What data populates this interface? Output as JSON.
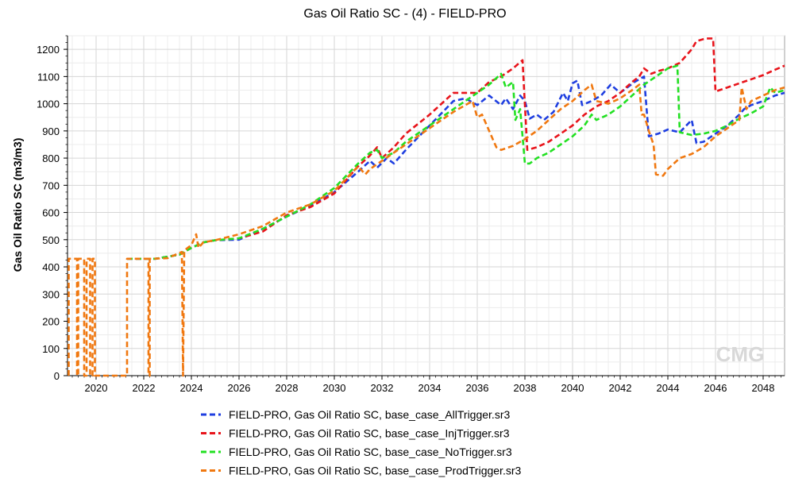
{
  "chart_data": {
    "type": "line",
    "title": "Gas Oil Ratio SC - (4) - FIELD-PRO",
    "ylabel": "Gas Oil Ratio SC (m3/m3)",
    "xlabel": "",
    "xlim": [
      2018.8,
      2048.9
    ],
    "ylim": [
      0,
      1250
    ],
    "x_ticks": [
      2020,
      2022,
      2024,
      2026,
      2028,
      2030,
      2032,
      2034,
      2036,
      2038,
      2040,
      2042,
      2044,
      2046,
      2048
    ],
    "y_ticks": [
      0,
      100,
      200,
      300,
      400,
      500,
      600,
      700,
      800,
      900,
      1000,
      1100,
      1200
    ],
    "grid": true,
    "legend_position": "bottom",
    "watermark": "CMG",
    "series": [
      {
        "name": "FIELD-PRO, Gas Oil Ratio SC, base_case_AllTrigger.sr3",
        "color": "#1f3fe0",
        "dash": "dashed",
        "points": [
          [
            2021.3,
            430
          ],
          [
            2022.5,
            430
          ],
          [
            2023.5,
            445
          ],
          [
            2024.0,
            470
          ],
          [
            2024.5,
            490
          ],
          [
            2025.0,
            498
          ],
          [
            2026.0,
            500
          ],
          [
            2027.0,
            540
          ],
          [
            2028.0,
            585
          ],
          [
            2029.0,
            625
          ],
          [
            2030.0,
            675
          ],
          [
            2031.0,
            750
          ],
          [
            2031.5,
            790
          ],
          [
            2031.8,
            765
          ],
          [
            2032.2,
            800
          ],
          [
            2032.5,
            780
          ],
          [
            2033.0,
            830
          ],
          [
            2034.0,
            920
          ],
          [
            2035.0,
            1010
          ],
          [
            2035.5,
            1020
          ],
          [
            2036.0,
            995
          ],
          [
            2036.5,
            1030
          ],
          [
            2037.0,
            995
          ],
          [
            2037.2,
            1020
          ],
          [
            2037.5,
            980
          ],
          [
            2037.8,
            1030
          ],
          [
            2038.0,
            1010
          ],
          [
            2038.2,
            945
          ],
          [
            2038.5,
            960
          ],
          [
            2038.8,
            940
          ],
          [
            2039.2,
            970
          ],
          [
            2039.6,
            1040
          ],
          [
            2039.8,
            1010
          ],
          [
            2040.0,
            1075
          ],
          [
            2040.2,
            1085
          ],
          [
            2040.4,
            995
          ],
          [
            2040.8,
            1010
          ],
          [
            2041.2,
            1030
          ],
          [
            2041.6,
            1070
          ],
          [
            2042.0,
            1040
          ],
          [
            2042.3,
            1060
          ],
          [
            2042.6,
            1080
          ],
          [
            2043.0,
            1100
          ],
          [
            2043.2,
            880
          ],
          [
            2043.6,
            890
          ],
          [
            2044.0,
            905
          ],
          [
            2044.5,
            895
          ],
          [
            2045.0,
            940
          ],
          [
            2045.2,
            855
          ],
          [
            2045.5,
            860
          ],
          [
            2046.0,
            890
          ],
          [
            2046.5,
            920
          ],
          [
            2047.0,
            960
          ],
          [
            2047.2,
            980
          ],
          [
            2047.5,
            995
          ],
          [
            2048.0,
            1010
          ],
          [
            2048.5,
            1030
          ],
          [
            2048.9,
            1040
          ]
        ]
      },
      {
        "name": "FIELD-PRO, Gas Oil Ratio SC, base_case_InjTrigger.sr3",
        "color": "#e8141b",
        "dash": "dashed",
        "points": [
          [
            2021.3,
            430
          ],
          [
            2022.5,
            430
          ],
          [
            2023.5,
            445
          ],
          [
            2024.0,
            470
          ],
          [
            2024.5,
            490
          ],
          [
            2025.0,
            498
          ],
          [
            2026.0,
            505
          ],
          [
            2027.0,
            530
          ],
          [
            2028.0,
            590
          ],
          [
            2029.0,
            620
          ],
          [
            2030.0,
            670
          ],
          [
            2031.0,
            770
          ],
          [
            2031.5,
            810
          ],
          [
            2031.8,
            840
          ],
          [
            2032.0,
            800
          ],
          [
            2032.5,
            840
          ],
          [
            2033.0,
            890
          ],
          [
            2034.0,
            960
          ],
          [
            2035.0,
            1040
          ],
          [
            2036.0,
            1040
          ],
          [
            2036.5,
            1080
          ],
          [
            2037.0,
            1100
          ],
          [
            2037.5,
            1130
          ],
          [
            2037.9,
            1160
          ],
          [
            2038.1,
            830
          ],
          [
            2038.5,
            840
          ],
          [
            2039.0,
            860
          ],
          [
            2039.5,
            890
          ],
          [
            2040.0,
            920
          ],
          [
            2040.5,
            960
          ],
          [
            2041.0,
            990
          ],
          [
            2041.5,
            1010
          ],
          [
            2042.0,
            1040
          ],
          [
            2042.5,
            1080
          ],
          [
            2042.8,
            1100
          ],
          [
            2043.0,
            1130
          ],
          [
            2043.3,
            1110
          ],
          [
            2043.6,
            1120
          ],
          [
            2044.0,
            1130
          ],
          [
            2044.5,
            1150
          ],
          [
            2044.8,
            1180
          ],
          [
            2045.0,
            1200
          ],
          [
            2045.2,
            1230
          ],
          [
            2045.6,
            1240
          ],
          [
            2045.9,
            1240
          ],
          [
            2046.0,
            1045
          ],
          [
            2046.5,
            1060
          ],
          [
            2047.0,
            1075
          ],
          [
            2047.5,
            1090
          ],
          [
            2048.0,
            1105
          ],
          [
            2048.5,
            1125
          ],
          [
            2048.9,
            1140
          ]
        ]
      },
      {
        "name": "FIELD-PRO, Gas Oil Ratio SC, base_case_NoTrigger.sr3",
        "color": "#22e022",
        "dash": "dashed",
        "points": [
          [
            2021.3,
            430
          ],
          [
            2022.5,
            430
          ],
          [
            2023.5,
            445
          ],
          [
            2024.0,
            470
          ],
          [
            2024.5,
            490
          ],
          [
            2025.0,
            498
          ],
          [
            2026.0,
            505
          ],
          [
            2027.0,
            540
          ],
          [
            2028.0,
            585
          ],
          [
            2029.0,
            630
          ],
          [
            2030.0,
            690
          ],
          [
            2031.0,
            780
          ],
          [
            2031.5,
            820
          ],
          [
            2031.8,
            830
          ],
          [
            2032.0,
            800
          ],
          [
            2032.5,
            820
          ],
          [
            2033.0,
            860
          ],
          [
            2034.0,
            920
          ],
          [
            2035.0,
            980
          ],
          [
            2036.0,
            1040
          ],
          [
            2036.5,
            1070
          ],
          [
            2037.0,
            1110
          ],
          [
            2037.2,
            1060
          ],
          [
            2037.5,
            1080
          ],
          [
            2037.6,
            940
          ],
          [
            2037.8,
            980
          ],
          [
            2038.0,
            780
          ],
          [
            2038.2,
            780
          ],
          [
            2038.5,
            800
          ],
          [
            2039.0,
            820
          ],
          [
            2039.5,
            850
          ],
          [
            2040.0,
            880
          ],
          [
            2040.5,
            920
          ],
          [
            2040.8,
            960
          ],
          [
            2041.0,
            940
          ],
          [
            2041.5,
            960
          ],
          [
            2042.0,
            990
          ],
          [
            2042.5,
            1030
          ],
          [
            2043.0,
            1070
          ],
          [
            2043.5,
            1100
          ],
          [
            2044.0,
            1130
          ],
          [
            2044.4,
            1140
          ],
          [
            2044.5,
            895
          ],
          [
            2045.0,
            885
          ],
          [
            2045.5,
            890
          ],
          [
            2046.0,
            900
          ],
          [
            2046.5,
            920
          ],
          [
            2047.0,
            945
          ],
          [
            2047.5,
            965
          ],
          [
            2048.0,
            990
          ],
          [
            2048.3,
            1060
          ],
          [
            2048.5,
            1040
          ],
          [
            2048.9,
            1050
          ]
        ]
      },
      {
        "name": "FIELD-PRO, Gas Oil Ratio SC, base_case_ProdTrigger.sr3",
        "color": "#f07810",
        "dash": "dashed",
        "points": [
          [
            2018.85,
            0
          ],
          [
            2018.85,
            430
          ],
          [
            2019.2,
            430
          ],
          [
            2019.2,
            0
          ],
          [
            2019.25,
            0
          ],
          [
            2019.25,
            430
          ],
          [
            2019.5,
            430
          ],
          [
            2019.5,
            0
          ],
          [
            2019.6,
            0
          ],
          [
            2019.6,
            430
          ],
          [
            2019.75,
            430
          ],
          [
            2019.75,
            0
          ],
          [
            2019.85,
            0
          ],
          [
            2019.85,
            430
          ],
          [
            2019.95,
            430
          ],
          [
            2019.95,
            0
          ],
          [
            2021.3,
            0
          ],
          [
            2021.3,
            430
          ],
          [
            2022.2,
            430
          ],
          [
            2022.2,
            0
          ],
          [
            2022.25,
            0
          ],
          [
            2022.25,
            430
          ],
          [
            2023.0,
            432
          ],
          [
            2023.6,
            455
          ],
          [
            2023.65,
            0
          ],
          [
            2023.7,
            460
          ],
          [
            2024.0,
            480
          ],
          [
            2024.2,
            520
          ],
          [
            2024.3,
            470
          ],
          [
            2024.5,
            490
          ],
          [
            2025.0,
            498
          ],
          [
            2026.0,
            520
          ],
          [
            2027.0,
            550
          ],
          [
            2028.0,
            600
          ],
          [
            2029.0,
            630
          ],
          [
            2030.0,
            680
          ],
          [
            2031.0,
            770
          ],
          [
            2031.3,
            740
          ],
          [
            2031.5,
            760
          ],
          [
            2032.0,
            790
          ],
          [
            2033.0,
            850
          ],
          [
            2034.0,
            910
          ],
          [
            2035.0,
            970
          ],
          [
            2035.8,
            1010
          ],
          [
            2036.0,
            950
          ],
          [
            2036.2,
            960
          ],
          [
            2036.5,
            900
          ],
          [
            2036.8,
            840
          ],
          [
            2037.0,
            830
          ],
          [
            2037.5,
            845
          ],
          [
            2038.0,
            870
          ],
          [
            2038.5,
            900
          ],
          [
            2039.0,
            940
          ],
          [
            2039.5,
            980
          ],
          [
            2040.0,
            1010
          ],
          [
            2040.5,
            1050
          ],
          [
            2040.8,
            1070
          ],
          [
            2041.0,
            1010
          ],
          [
            2041.5,
            1000
          ],
          [
            2042.0,
            1020
          ],
          [
            2042.5,
            1050
          ],
          [
            2042.8,
            1070
          ],
          [
            2042.9,
            960
          ],
          [
            2043.0,
            960
          ],
          [
            2043.2,
            900
          ],
          [
            2043.4,
            850
          ],
          [
            2043.5,
            740
          ],
          [
            2043.8,
            735
          ],
          [
            2044.0,
            760
          ],
          [
            2044.5,
            800
          ],
          [
            2045.0,
            815
          ],
          [
            2045.5,
            840
          ],
          [
            2046.0,
            880
          ],
          [
            2046.5,
            910
          ],
          [
            2047.0,
            940
          ],
          [
            2047.1,
            1060
          ],
          [
            2047.3,
            980
          ],
          [
            2047.5,
            1010
          ],
          [
            2048.0,
            1030
          ],
          [
            2048.5,
            1050
          ],
          [
            2048.9,
            1060
          ]
        ]
      }
    ]
  }
}
